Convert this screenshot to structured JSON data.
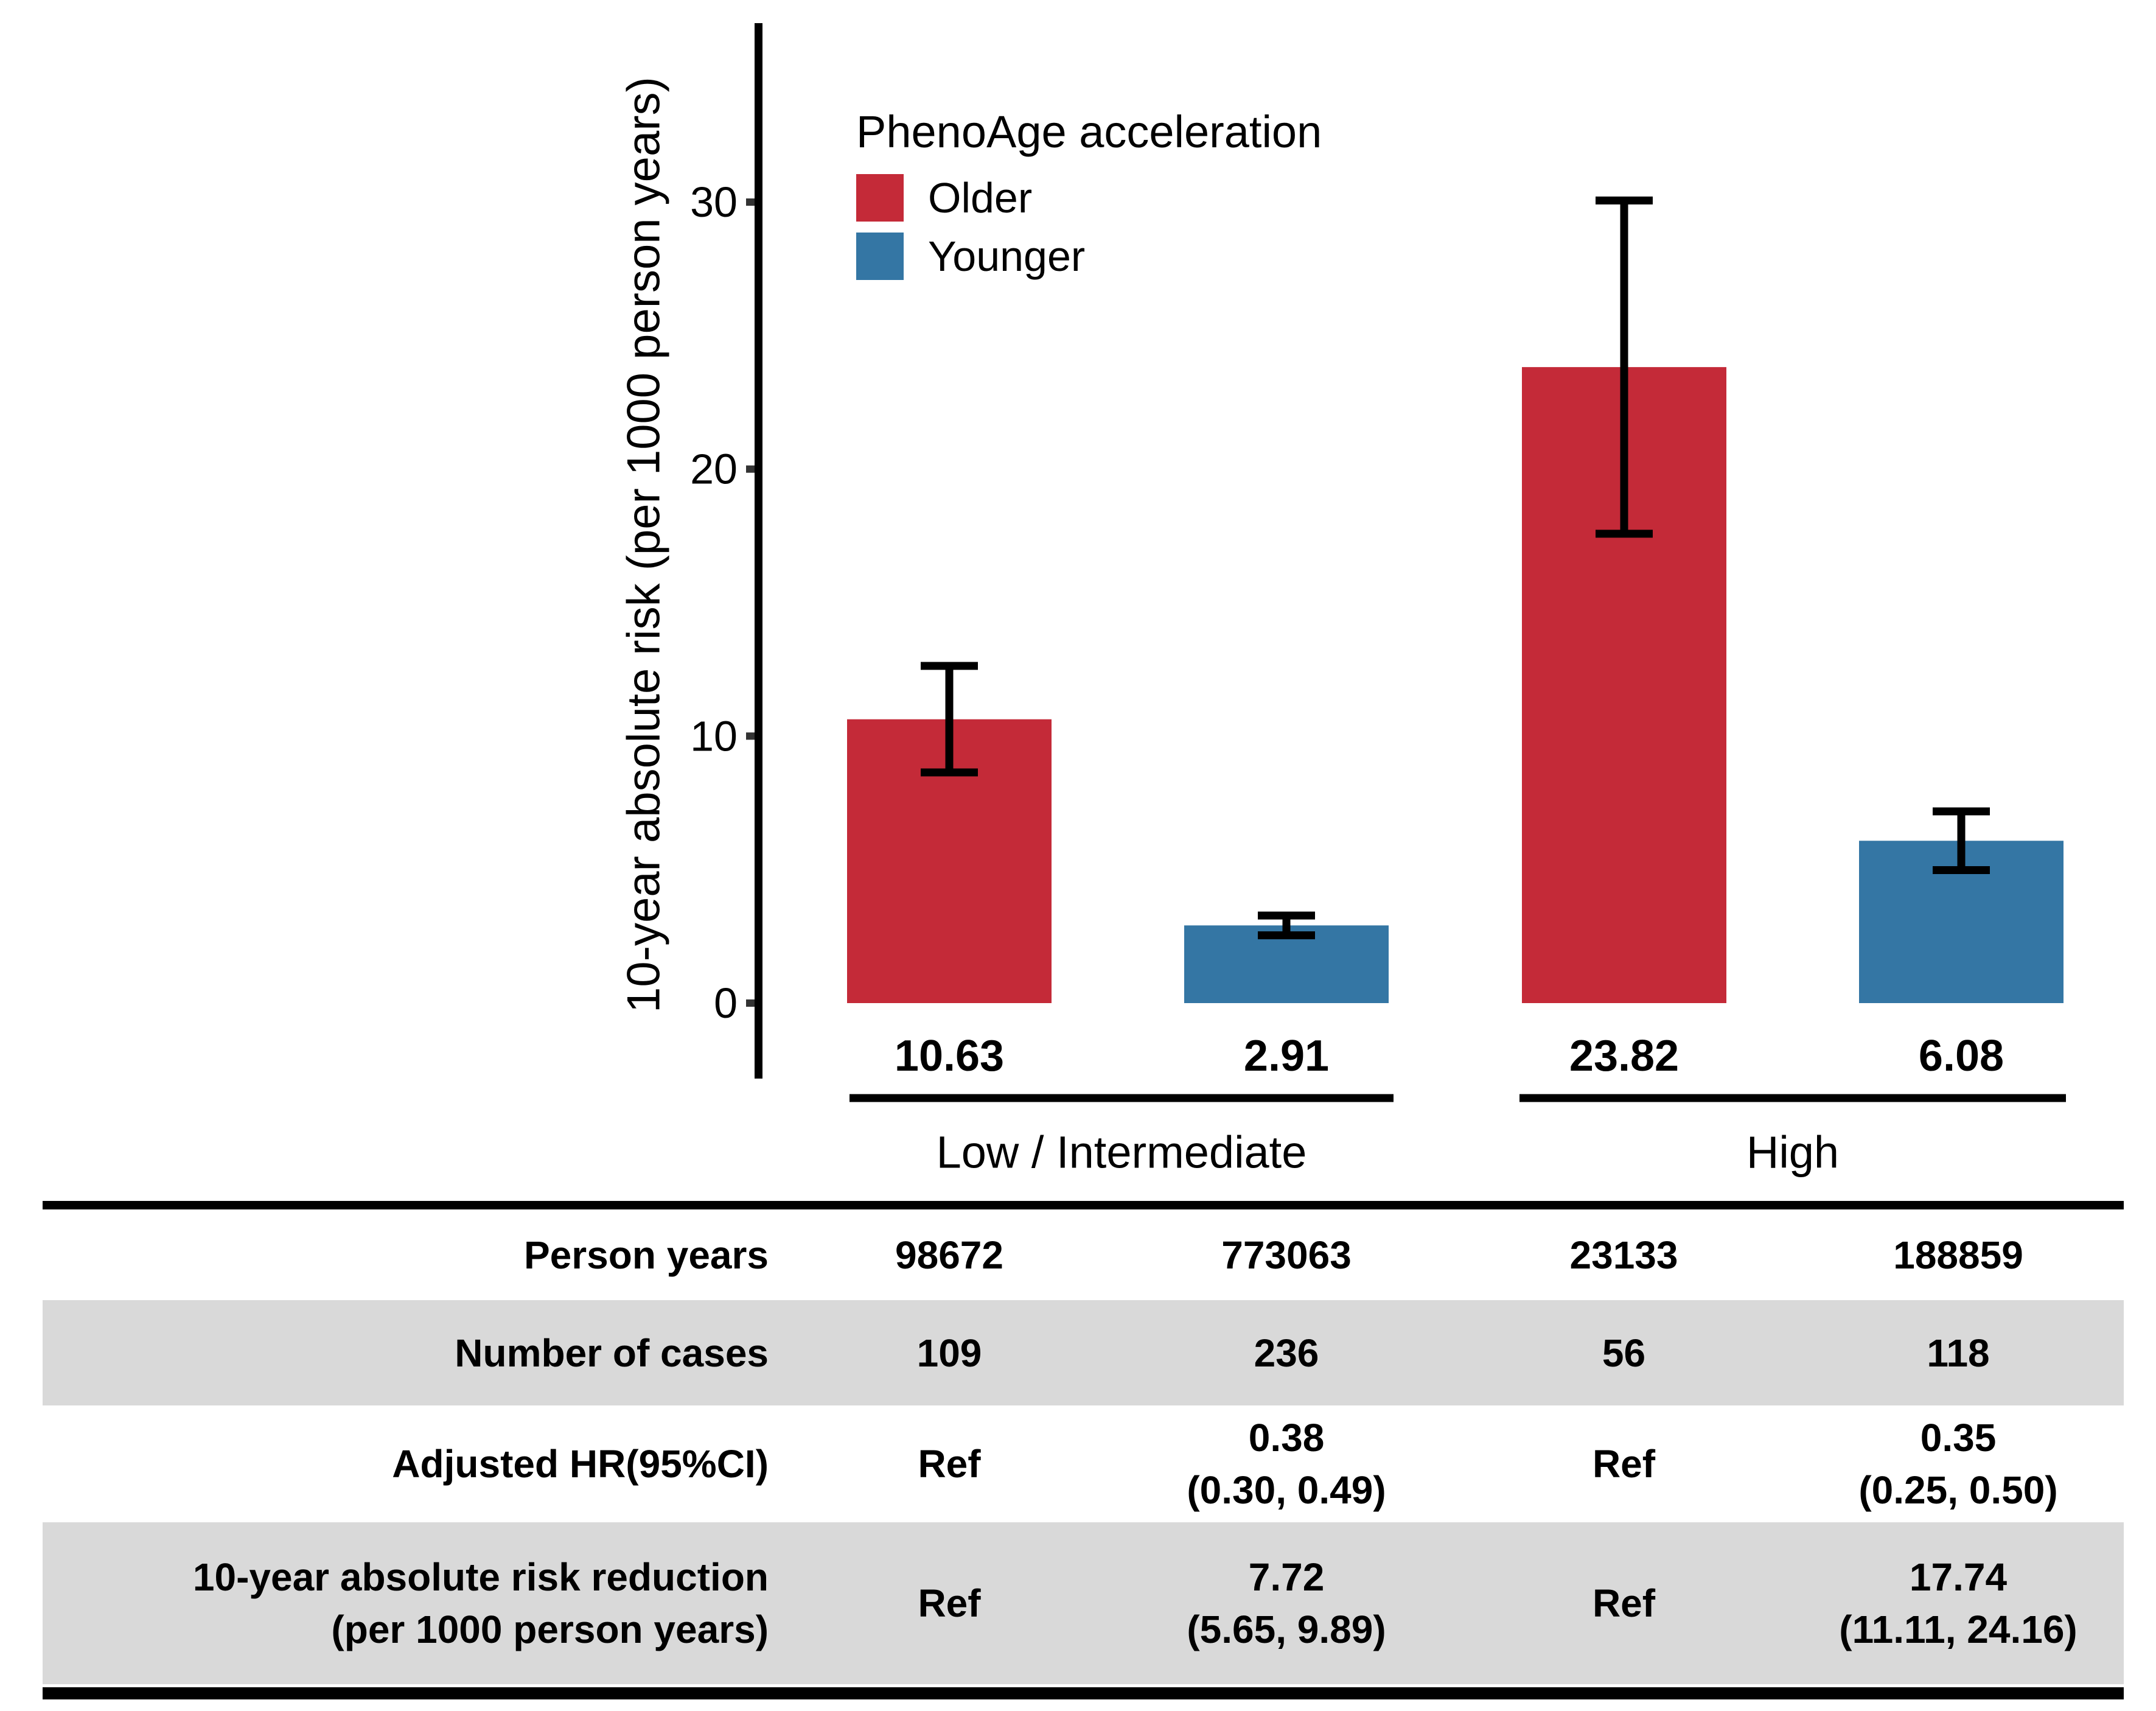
{
  "figure": {
    "background": "#FFFFFF"
  },
  "chart_data": {
    "type": "bar",
    "title": "",
    "xlabel": "",
    "ylabel": "10-year absolute risk (per 1000 person years)",
    "yticks": [
      0,
      10,
      20,
      30
    ],
    "ylim": [
      0,
      36
    ],
    "grid": false,
    "legend_title": "PhenoAge acceleration",
    "legend_position": "upper-left-inside",
    "series": [
      {
        "name": "Older",
        "color": "#C42A38"
      },
      {
        "name": "Younger",
        "color": "#3476A4"
      }
    ],
    "groups": [
      "Low / Intermediate",
      "High"
    ],
    "bars": [
      {
        "group": "Low / Intermediate",
        "series": "Older",
        "value": 10.63,
        "label": "10.63",
        "ci_low": 8.64,
        "ci_high": 12.63
      },
      {
        "group": "Low / Intermediate",
        "series": "Younger",
        "value": 2.91,
        "label": "2.91",
        "ci_low": 2.54,
        "ci_high": 3.28
      },
      {
        "group": "High",
        "series": "Older",
        "value": 23.82,
        "label": "23.82",
        "ci_low": 17.58,
        "ci_high": 30.06
      },
      {
        "group": "High",
        "series": "Younger",
        "value": 6.08,
        "label": "6.08",
        "ci_low": 4.98,
        "ci_high": 7.18
      }
    ],
    "bar_value_labels": [
      "10.63",
      "2.91",
      "23.82",
      "6.08"
    ],
    "axis_color": "#000000",
    "tick_color": "#333333",
    "error_bar_color": "#000000"
  },
  "table": {
    "stripe_color": "#D9D9D9",
    "rows": [
      {
        "label": "Person years",
        "values": [
          "98672",
          "773063",
          "23133",
          "188859"
        ],
        "striped": false
      },
      {
        "label": "Number of cases",
        "values": [
          "109",
          "236",
          "56",
          "118"
        ],
        "striped": true
      },
      {
        "label": "Adjusted HR(95%CI)",
        "values": [
          "Ref",
          "0.38\n(0.30, 0.49)",
          "Ref",
          "0.35\n(0.25, 0.50)"
        ],
        "striped": false
      },
      {
        "label": "10-year absolute risk reduction\n(per 1000 person years)",
        "values": [
          "Ref",
          "7.72\n(5.65, 9.89)",
          "Ref",
          "17.74\n(11.11, 24.16)"
        ],
        "striped": true
      }
    ]
  }
}
